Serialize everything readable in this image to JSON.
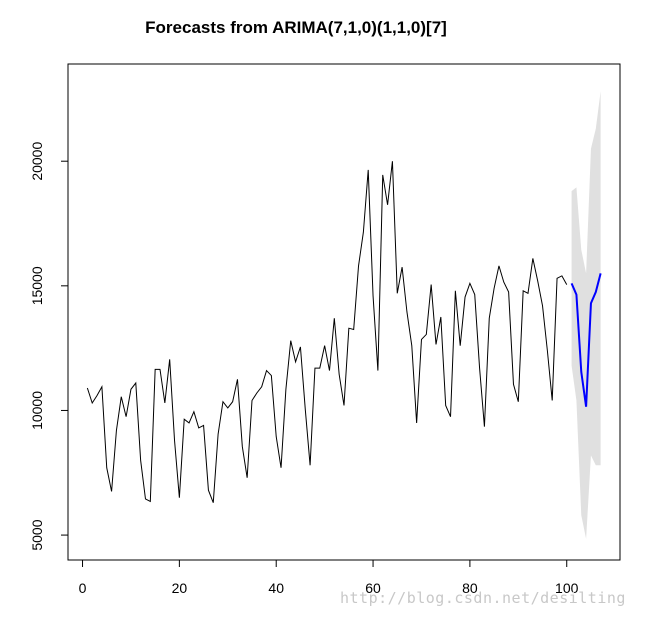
{
  "chart_data": {
    "type": "line",
    "title": "Forecasts from ARIMA(7,1,0)(1,1,0)[7]",
    "xlabel": "",
    "ylabel": "",
    "xlim": [
      -3,
      111
    ],
    "ylim": [
      4000,
      23900
    ],
    "x_ticks": [
      0,
      20,
      40,
      60,
      80,
      100
    ],
    "y_ticks": [
      5000,
      10000,
      15000,
      20000
    ],
    "grid": false,
    "colors": {
      "history": "#000000",
      "forecast": "#0000ff",
      "interval": "#e0e0e0"
    },
    "history": {
      "x": [
        1,
        2,
        3,
        4,
        5,
        6,
        7,
        8,
        9,
        10,
        11,
        12,
        13,
        14,
        15,
        16,
        17,
        18,
        19,
        20,
        21,
        22,
        23,
        24,
        25,
        26,
        27,
        28,
        29,
        30,
        31,
        32,
        33,
        34,
        35,
        36,
        37,
        38,
        39,
        40,
        41,
        42,
        43,
        44,
        45,
        46,
        47,
        48,
        49,
        50,
        51,
        52,
        53,
        54,
        55,
        56,
        57,
        58,
        59,
        60,
        61,
        62,
        63,
        64,
        65,
        66,
        67,
        68,
        69,
        70,
        71,
        72,
        73,
        74,
        75,
        76,
        77,
        78,
        79,
        80,
        81,
        82,
        83,
        84,
        85,
        86,
        87,
        88,
        89,
        90,
        91,
        92,
        93,
        94,
        95,
        96,
        97,
        98,
        99,
        100
      ],
      "y": [
        10900,
        10300,
        10600,
        10950,
        7700,
        6750,
        9200,
        10550,
        9750,
        10850,
        11100,
        8000,
        6450,
        6350,
        11650,
        11650,
        10300,
        12050,
        8800,
        6500,
        9650,
        9500,
        9950,
        9300,
        9400,
        6800,
        6300,
        9050,
        10350,
        10100,
        10350,
        11250,
        8550,
        7300,
        10400,
        10700,
        10950,
        11600,
        11400,
        8950,
        7700,
        10850,
        12800,
        11950,
        12550,
        10050,
        7800,
        11700,
        11700,
        12600,
        11600,
        13700,
        11450,
        10200,
        13300,
        13250,
        15800,
        17150,
        19650,
        14600,
        11600,
        19450,
        18250,
        20000,
        14700,
        15750,
        13950,
        12600,
        9500,
        12850,
        13050,
        15050,
        12650,
        13750,
        10200,
        9750,
        14800,
        12600,
        14550,
        15100,
        14650,
        11700,
        9350,
        13700,
        14900,
        15800,
        15150,
        14750,
        11050,
        10350,
        14800,
        14700,
        16100,
        15200,
        14200,
        12400,
        10400,
        15300,
        15400,
        15050
      ]
    },
    "forecast": {
      "x": [
        101,
        102,
        103,
        104,
        105,
        106,
        107
      ],
      "mean": [
        15100,
        14650,
        11550,
        10150,
        14300,
        14750,
        15500
      ],
      "lower80": [
        13500,
        12600,
        8900,
        6950,
        10300,
        10500,
        11600
      ],
      "upper80": [
        16700,
        16800,
        14200,
        13350,
        18300,
        19000,
        19400
      ],
      "lower95": [
        11800,
        10400,
        5800,
        4850,
        8200,
        7800,
        7800
      ],
      "upper95": [
        18800,
        18950,
        16450,
        15500,
        20500,
        21300,
        22800
      ]
    }
  },
  "watermark": "http://blog.csdn.net/desilting"
}
